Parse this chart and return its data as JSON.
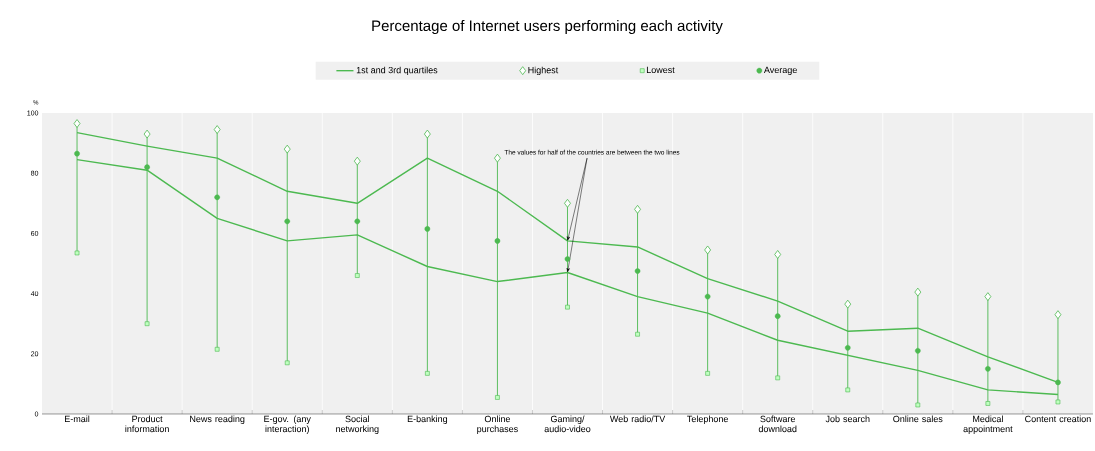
{
  "chart_data": {
    "type": "scatter",
    "title": "Percentage of Internet users performing each activity",
    "ylabel": "%",
    "categories": [
      "E-mail",
      "Product information",
      "News reading",
      "E-gov. (any interaction)",
      "Social networking",
      "E-banking",
      "Online purchases",
      "Gaming/ audio-video",
      "Web radio/TV",
      "Telephone",
      "Software download",
      "Job search",
      "Online sales",
      "Medical appointment",
      "Content creation"
    ],
    "series": [
      {
        "name": "Highest",
        "type": "scatter",
        "marker": "diamond",
        "color": "#4cb950",
        "values": [
          96.5,
          93,
          94.5,
          88,
          84,
          93,
          85,
          70,
          68,
          54.5,
          53,
          36.5,
          40.5,
          39,
          33
        ]
      },
      {
        "name": "Lowest",
        "type": "scatter",
        "marker": "square",
        "color": "#4cb950",
        "values": [
          53.5,
          30,
          21.5,
          17,
          46,
          13.5,
          5.5,
          35.5,
          26.5,
          13.5,
          12,
          8,
          3,
          3.5,
          4
        ]
      },
      {
        "name": "1st and 3rd quartiles",
        "type": "line",
        "marker": "none",
        "color": "#4cb950",
        "values": [
          93.5,
          89,
          85,
          74,
          70,
          85,
          74,
          57.5,
          55.5,
          45,
          37.5,
          27.5,
          28.5,
          19,
          10.5
        ]
      },
      {
        "type": "line",
        "marker": "none",
        "color": "#4cb950",
        "values": [
          84.5,
          81,
          65,
          57.5,
          59.5,
          49,
          44,
          47,
          39,
          33.5,
          24.5,
          19.5,
          14.5,
          8,
          6.5
        ]
      },
      {
        "name": "Average",
        "type": "scatter",
        "marker": "circle",
        "color": "#4cb950",
        "values": [
          86.5,
          82,
          72,
          64,
          64,
          61.5,
          57.5,
          51.5,
          47.5,
          39,
          32.5,
          22,
          21,
          15,
          10.5
        ]
      }
    ],
    "annotations": [
      {
        "text": "The values for half of the countries are between the two lines",
        "x": "Gaming/ audio-video",
        "y": 57.5
      }
    ],
    "ylim": [
      0,
      100
    ],
    "yticks": [
      0,
      20,
      40,
      60,
      80,
      100
    ],
    "grid": true,
    "legend": "top"
  }
}
